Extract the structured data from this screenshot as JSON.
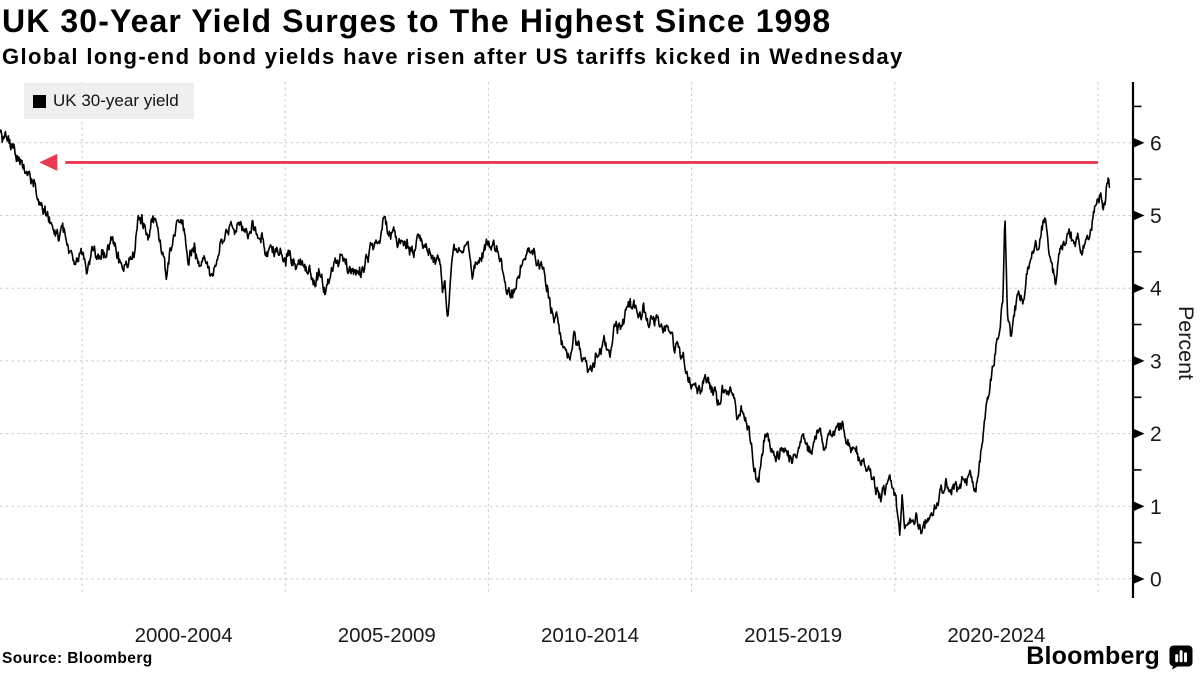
{
  "header": {
    "title": "UK 30-Year Yield Surges to The Highest Since 1998",
    "subtitle": "Global long-end bond yields have risen after US tariffs kicked in Wednesday"
  },
  "legend": {
    "label": "UK 30-year yield",
    "marker": "black-square",
    "marker_color": "#000000"
  },
  "footer": {
    "source_label": "Source:  Bloomberg",
    "brand": "Bloomberg",
    "brand_icon": "bloomberg-terminal-icon"
  },
  "colors": {
    "line": "#000000",
    "arrow_red": "#e93a50",
    "grid": "#c9c9c9",
    "axis": "#000000",
    "tick_text": "#1a1a1a",
    "legend_bg": "#efefef"
  },
  "chart_data": {
    "type": "line",
    "title": "UK 30-Year Yield Surges to The Highest Since 1998",
    "subtitle": "Global long-end bond yields have risen after US tariffs kicked in Wednesday",
    "ylabel": "Percent",
    "ylim": [
      0,
      6.5
    ],
    "yticks": [
      0,
      1,
      2,
      3,
      4,
      5,
      6
    ],
    "minor_tick_step": 0.5,
    "xlim": [
      1997.98,
      2025.9
    ],
    "xgridlines": [
      2000,
      2005,
      2010,
      2015,
      2020,
      2025
    ],
    "xtick_labels": [
      "2000-2004",
      "2005-2009",
      "2010-2014",
      "2015-2019",
      "2020-2024"
    ],
    "grid": "dashed",
    "legend_position": "top-left",
    "legend_entries": [
      "UK 30-year yield"
    ],
    "annotation": {
      "type": "arrow",
      "direction": "left",
      "value_percent": 5.73,
      "from_year": 2025.0,
      "to_year": 1999.27,
      "color": "#e93a50",
      "meaning": "current surge back to level last seen in 1998"
    },
    "series": [
      {
        "name": "UK 30-year yield",
        "unit": "percent",
        "points": [
          [
            1997.98,
            6.22
          ],
          [
            1998.05,
            6.08
          ],
          [
            1998.1,
            6.16
          ],
          [
            1998.18,
            5.98
          ],
          [
            1998.25,
            5.92
          ],
          [
            1998.32,
            5.99
          ],
          [
            1998.4,
            5.86
          ],
          [
            1998.5,
            5.8
          ],
          [
            1998.58,
            5.72
          ],
          [
            1998.65,
            5.65
          ],
          [
            1998.72,
            5.55
          ],
          [
            1998.8,
            5.45
          ],
          [
            1998.9,
            5.32
          ],
          [
            1999.0,
            5.2
          ],
          [
            1999.1,
            5.08
          ],
          [
            1999.2,
            4.96
          ],
          [
            1999.3,
            4.85
          ],
          [
            1999.42,
            4.72
          ],
          [
            1999.5,
            4.86
          ],
          [
            1999.6,
            4.66
          ],
          [
            1999.7,
            4.48
          ],
          [
            1999.82,
            4.2
          ],
          [
            1999.92,
            4.38
          ],
          [
            2000.02,
            4.47
          ],
          [
            2000.12,
            4.2
          ],
          [
            2000.25,
            4.5
          ],
          [
            2000.4,
            4.4
          ],
          [
            2000.55,
            4.52
          ],
          [
            2000.72,
            4.7
          ],
          [
            2000.88,
            4.48
          ],
          [
            2001.0,
            4.2
          ],
          [
            2001.12,
            4.36
          ],
          [
            2001.28,
            4.52
          ],
          [
            2001.42,
            5.0
          ],
          [
            2001.52,
            4.88
          ],
          [
            2001.65,
            4.74
          ],
          [
            2001.8,
            4.95
          ],
          [
            2001.95,
            4.56
          ],
          [
            2002.08,
            4.2
          ],
          [
            2002.22,
            4.62
          ],
          [
            2002.35,
            5.08
          ],
          [
            2002.5,
            4.82
          ],
          [
            2002.62,
            4.42
          ],
          [
            2002.78,
            4.52
          ],
          [
            2002.92,
            4.24
          ],
          [
            2003.05,
            4.4
          ],
          [
            2003.2,
            4.12
          ],
          [
            2003.35,
            4.48
          ],
          [
            2003.5,
            4.7
          ],
          [
            2003.62,
            4.84
          ],
          [
            2003.75,
            4.68
          ],
          [
            2003.88,
            4.82
          ],
          [
            2004.02,
            4.72
          ],
          [
            2004.18,
            4.92
          ],
          [
            2004.32,
            4.78
          ],
          [
            2004.48,
            4.62
          ],
          [
            2004.62,
            4.5
          ],
          [
            2004.78,
            4.44
          ],
          [
            2004.88,
            4.58
          ],
          [
            2005.0,
            4.38
          ],
          [
            2005.12,
            4.5
          ],
          [
            2005.28,
            4.34
          ],
          [
            2005.42,
            4.4
          ],
          [
            2005.55,
            4.24
          ],
          [
            2005.7,
            4.12
          ],
          [
            2005.85,
            4.22
          ],
          [
            2006.0,
            3.93
          ],
          [
            2006.15,
            4.22
          ],
          [
            2006.3,
            4.36
          ],
          [
            2006.45,
            4.4
          ],
          [
            2006.55,
            4.2
          ],
          [
            2006.7,
            4.27
          ],
          [
            2006.85,
            4.24
          ],
          [
            2007.0,
            4.4
          ],
          [
            2007.12,
            4.5
          ],
          [
            2007.25,
            4.62
          ],
          [
            2007.42,
            4.9
          ],
          [
            2007.55,
            4.72
          ],
          [
            2007.7,
            4.71
          ],
          [
            2007.85,
            4.58
          ],
          [
            2008.0,
            4.62
          ],
          [
            2008.15,
            4.5
          ],
          [
            2008.3,
            4.67
          ],
          [
            2008.45,
            4.58
          ],
          [
            2008.6,
            4.52
          ],
          [
            2008.72,
            4.35
          ],
          [
            2008.82,
            4.28
          ],
          [
            2008.87,
            3.92
          ],
          [
            2008.93,
            4.12
          ],
          [
            2009.0,
            3.56
          ],
          [
            2009.1,
            4.4
          ],
          [
            2009.22,
            4.6
          ],
          [
            2009.35,
            4.4
          ],
          [
            2009.5,
            4.52
          ],
          [
            2009.6,
            4.22
          ],
          [
            2009.75,
            4.4
          ],
          [
            2009.88,
            4.55
          ],
          [
            2009.98,
            4.62
          ],
          [
            2010.1,
            4.68
          ],
          [
            2010.2,
            4.55
          ],
          [
            2010.3,
            4.32
          ],
          [
            2010.45,
            4.05
          ],
          [
            2010.55,
            3.95
          ],
          [
            2010.7,
            4.12
          ],
          [
            2010.85,
            4.28
          ],
          [
            2011.0,
            4.5
          ],
          [
            2011.1,
            4.56
          ],
          [
            2011.2,
            4.4
          ],
          [
            2011.3,
            4.28
          ],
          [
            2011.45,
            4.05
          ],
          [
            2011.55,
            3.73
          ],
          [
            2011.7,
            3.52
          ],
          [
            2011.85,
            3.22
          ],
          [
            2012.0,
            3.02
          ],
          [
            2012.1,
            3.3
          ],
          [
            2012.25,
            3.22
          ],
          [
            2012.4,
            2.88
          ],
          [
            2012.55,
            2.84
          ],
          [
            2012.72,
            3.15
          ],
          [
            2012.85,
            3.25
          ],
          [
            2013.0,
            3.1
          ],
          [
            2013.1,
            3.42
          ],
          [
            2013.25,
            3.38
          ],
          [
            2013.4,
            3.7
          ],
          [
            2013.55,
            3.74
          ],
          [
            2013.65,
            3.66
          ],
          [
            2013.8,
            3.73
          ],
          [
            2013.92,
            3.6
          ],
          [
            2014.05,
            3.52
          ],
          [
            2014.3,
            3.47
          ],
          [
            2014.45,
            3.33
          ],
          [
            2014.6,
            3.19
          ],
          [
            2014.8,
            2.97
          ],
          [
            2014.95,
            2.78
          ],
          [
            2015.1,
            2.64
          ],
          [
            2015.2,
            2.5
          ],
          [
            2015.35,
            2.72
          ],
          [
            2015.5,
            2.6
          ],
          [
            2015.65,
            2.5
          ],
          [
            2015.8,
            2.6
          ],
          [
            2015.95,
            2.52
          ],
          [
            2016.1,
            2.3
          ],
          [
            2016.28,
            2.26
          ],
          [
            2016.42,
            2.12
          ],
          [
            2016.52,
            1.62
          ],
          [
            2016.62,
            1.26
          ],
          [
            2016.72,
            1.56
          ],
          [
            2016.85,
            2.04
          ],
          [
            2017.0,
            1.73
          ],
          [
            2017.15,
            1.7
          ],
          [
            2017.3,
            1.8
          ],
          [
            2017.45,
            1.66
          ],
          [
            2017.6,
            1.78
          ],
          [
            2017.75,
            1.9
          ],
          [
            2017.9,
            1.76
          ],
          [
            2018.02,
            1.9
          ],
          [
            2018.15,
            2.02
          ],
          [
            2018.3,
            1.84
          ],
          [
            2018.45,
            1.93
          ],
          [
            2018.6,
            2.02
          ],
          [
            2018.72,
            2.06
          ],
          [
            2018.85,
            1.88
          ],
          [
            2019.0,
            1.82
          ],
          [
            2019.12,
            1.7
          ],
          [
            2019.25,
            1.5
          ],
          [
            2019.4,
            1.41
          ],
          [
            2019.52,
            1.22
          ],
          [
            2019.65,
            1.06
          ],
          [
            2019.75,
            1.22
          ],
          [
            2019.88,
            1.31
          ],
          [
            2020.0,
            1.2
          ],
          [
            2020.12,
            0.55
          ],
          [
            2020.18,
            1.12
          ],
          [
            2020.25,
            0.62
          ],
          [
            2020.4,
            0.7
          ],
          [
            2020.52,
            0.82
          ],
          [
            2020.65,
            0.73
          ],
          [
            2020.8,
            0.85
          ],
          [
            2020.95,
            0.92
          ],
          [
            2021.1,
            1.1
          ],
          [
            2021.25,
            1.38
          ],
          [
            2021.4,
            1.3
          ],
          [
            2021.55,
            1.18
          ],
          [
            2021.7,
            1.38
          ],
          [
            2021.85,
            1.45
          ],
          [
            2021.95,
            1.24
          ],
          [
            2022.05,
            1.42
          ],
          [
            2022.15,
            1.88
          ],
          [
            2022.25,
            2.3
          ],
          [
            2022.38,
            2.85
          ],
          [
            2022.48,
            3.18
          ],
          [
            2022.58,
            3.42
          ],
          [
            2022.66,
            3.78
          ],
          [
            2022.71,
            5.05
          ],
          [
            2022.77,
            3.66
          ],
          [
            2022.85,
            3.36
          ],
          [
            2022.95,
            3.72
          ],
          [
            2023.05,
            3.97
          ],
          [
            2023.15,
            3.83
          ],
          [
            2023.25,
            4.22
          ],
          [
            2023.38,
            4.6
          ],
          [
            2023.5,
            4.58
          ],
          [
            2023.6,
            4.8
          ],
          [
            2023.7,
            5.0
          ],
          [
            2023.82,
            4.46
          ],
          [
            2023.95,
            4.1
          ],
          [
            2024.1,
            4.57
          ],
          [
            2024.25,
            4.74
          ],
          [
            2024.38,
            4.67
          ],
          [
            2024.5,
            4.76
          ],
          [
            2024.6,
            4.51
          ],
          [
            2024.72,
            4.56
          ],
          [
            2024.82,
            4.8
          ],
          [
            2024.92,
            5.04
          ],
          [
            2025.0,
            5.19
          ],
          [
            2025.07,
            5.3
          ],
          [
            2025.12,
            5.13
          ],
          [
            2025.18,
            5.26
          ],
          [
            2025.26,
            5.52
          ],
          [
            2025.29,
            5.38
          ]
        ]
      }
    ]
  }
}
